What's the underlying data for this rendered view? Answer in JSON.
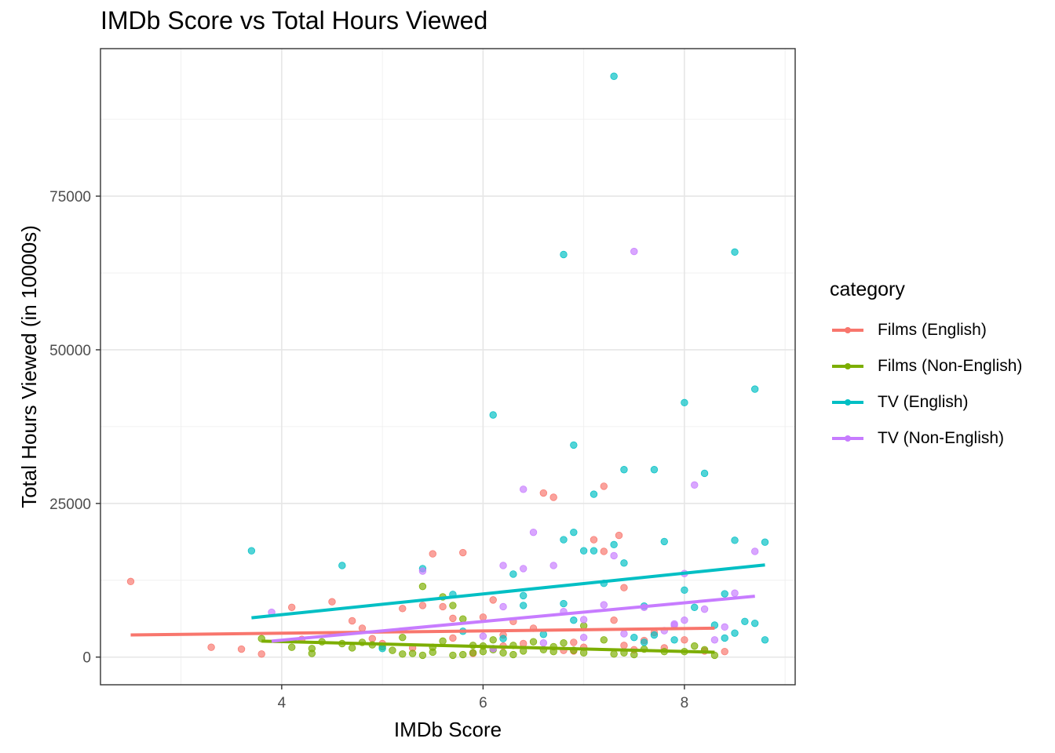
{
  "chart_data": {
    "type": "scatter",
    "title": "IMDb Score vs Total Hours Viewed",
    "xlabel": "IMDb Score",
    "ylabel": "Total Hours Viewed (in 10000s)",
    "xlim": [
      2.2,
      9.1
    ],
    "ylim": [
      -4500,
      99000
    ],
    "x_ticks": [
      4,
      6,
      8
    ],
    "x_tick_labels": [
      "4",
      "6",
      "8"
    ],
    "y_ticks": [
      0,
      25000,
      50000,
      75000
    ],
    "y_tick_labels": [
      "0",
      "25000",
      "50000",
      "75000"
    ],
    "x_minor": [
      3,
      5,
      7,
      9
    ],
    "y_minor": [
      12500,
      37500,
      62500,
      87500
    ],
    "grid": true,
    "legend": {
      "title": "category",
      "position": "right"
    },
    "series": [
      {
        "name": "Films (English)",
        "color": "#F8766D",
        "trend": [
          [
            2.5,
            3600
          ],
          [
            8.3,
            4700
          ]
        ],
        "points": [
          [
            2.5,
            12300
          ],
          [
            3.3,
            1600
          ],
          [
            3.6,
            1300
          ],
          [
            3.8,
            500
          ],
          [
            4.1,
            8100
          ],
          [
            4.5,
            9000
          ],
          [
            4.7,
            5900
          ],
          [
            4.8,
            4700
          ],
          [
            5.0,
            2200
          ],
          [
            5.2,
            7900
          ],
          [
            5.4,
            8400
          ],
          [
            5.5,
            16800
          ],
          [
            5.6,
            8200
          ],
          [
            5.7,
            3100
          ],
          [
            5.8,
            17000
          ],
          [
            5.9,
            600
          ],
          [
            6.0,
            6500
          ],
          [
            6.1,
            9300
          ],
          [
            6.2,
            3600
          ],
          [
            6.3,
            5800
          ],
          [
            6.4,
            2200
          ],
          [
            6.5,
            4700
          ],
          [
            6.6,
            26700
          ],
          [
            6.7,
            26000
          ],
          [
            6.8,
            1100
          ],
          [
            6.9,
            2400
          ],
          [
            7.0,
            1600
          ],
          [
            7.1,
            19100
          ],
          [
            7.2,
            27800
          ],
          [
            7.2,
            17200
          ],
          [
            7.3,
            6000
          ],
          [
            7.35,
            19800
          ],
          [
            7.4,
            11300
          ],
          [
            7.5,
            1200
          ],
          [
            7.6,
            2700
          ],
          [
            7.7,
            4000
          ],
          [
            7.8,
            1500
          ],
          [
            8.0,
            2800
          ],
          [
            8.2,
            1000
          ],
          [
            8.4,
            900
          ],
          [
            6.9,
            1000
          ],
          [
            6.2,
            1800
          ],
          [
            5.3,
            1500
          ],
          [
            4.2,
            2900
          ],
          [
            4.9,
            3000
          ],
          [
            5.7,
            6300
          ],
          [
            7.4,
            1900
          ]
        ]
      },
      {
        "name": "Films (Non-English)",
        "color": "#7CAE00",
        "trend": [
          [
            3.8,
            2600
          ],
          [
            8.3,
            800
          ]
        ],
        "points": [
          [
            3.8,
            3000
          ],
          [
            4.1,
            1600
          ],
          [
            4.3,
            600
          ],
          [
            4.3,
            1400
          ],
          [
            4.4,
            2500
          ],
          [
            4.6,
            2200
          ],
          [
            4.7,
            1500
          ],
          [
            4.8,
            2400
          ],
          [
            4.9,
            2000
          ],
          [
            5.0,
            1700
          ],
          [
            5.1,
            1100
          ],
          [
            5.2,
            500
          ],
          [
            5.3,
            600
          ],
          [
            5.4,
            11500
          ],
          [
            5.4,
            300
          ],
          [
            5.5,
            800
          ],
          [
            5.5,
            1600
          ],
          [
            5.6,
            9800
          ],
          [
            5.6,
            2600
          ],
          [
            5.7,
            8400
          ],
          [
            5.7,
            300
          ],
          [
            5.8,
            400
          ],
          [
            5.8,
            6200
          ],
          [
            5.9,
            1900
          ],
          [
            6.0,
            900
          ],
          [
            6.1,
            2800
          ],
          [
            6.1,
            1200
          ],
          [
            6.2,
            700
          ],
          [
            6.3,
            1900
          ],
          [
            6.3,
            400
          ],
          [
            6.4,
            1000
          ],
          [
            6.5,
            2500
          ],
          [
            6.6,
            1200
          ],
          [
            6.7,
            900
          ],
          [
            6.7,
            1700
          ],
          [
            6.8,
            2300
          ],
          [
            6.9,
            1100
          ],
          [
            7.0,
            5100
          ],
          [
            7.0,
            700
          ],
          [
            7.2,
            2800
          ],
          [
            7.3,
            500
          ],
          [
            7.4,
            700
          ],
          [
            7.5,
            400
          ],
          [
            7.6,
            1300
          ],
          [
            7.8,
            900
          ],
          [
            8.0,
            900
          ],
          [
            8.1,
            1800
          ],
          [
            8.2,
            1200
          ],
          [
            8.3,
            300
          ],
          [
            5.2,
            3200
          ],
          [
            6.0,
            1800
          ],
          [
            5.9,
            700
          ]
        ]
      },
      {
        "name": "TV (English)",
        "color": "#00BFC4",
        "trend": [
          [
            3.7,
            6400
          ],
          [
            8.8,
            15000
          ]
        ],
        "points": [
          [
            3.7,
            17300
          ],
          [
            4.6,
            14900
          ],
          [
            5.0,
            1400
          ],
          [
            5.4,
            14400
          ],
          [
            5.7,
            10200
          ],
          [
            5.8,
            4200
          ],
          [
            6.1,
            39400
          ],
          [
            6.2,
            3000
          ],
          [
            6.3,
            13500
          ],
          [
            6.4,
            10000
          ],
          [
            6.4,
            8400
          ],
          [
            6.6,
            3700
          ],
          [
            6.8,
            65500
          ],
          [
            6.8,
            19100
          ],
          [
            6.8,
            8700
          ],
          [
            6.9,
            34500
          ],
          [
            6.9,
            20300
          ],
          [
            7.0,
            17300
          ],
          [
            7.1,
            17300
          ],
          [
            7.1,
            26500
          ],
          [
            7.2,
            12000
          ],
          [
            7.3,
            18300
          ],
          [
            7.3,
            94500
          ],
          [
            7.4,
            30500
          ],
          [
            7.4,
            15300
          ],
          [
            7.5,
            3200
          ],
          [
            7.6,
            2400
          ],
          [
            7.7,
            30500
          ],
          [
            7.7,
            3600
          ],
          [
            7.8,
            18800
          ],
          [
            7.9,
            2800
          ],
          [
            8.0,
            41400
          ],
          [
            8.0,
            10900
          ],
          [
            8.1,
            8100
          ],
          [
            8.2,
            29900
          ],
          [
            8.3,
            5200
          ],
          [
            8.4,
            10300
          ],
          [
            8.4,
            3100
          ],
          [
            8.5,
            65900
          ],
          [
            8.5,
            19000
          ],
          [
            8.5,
            3900
          ],
          [
            8.6,
            5800
          ],
          [
            8.7,
            43600
          ],
          [
            8.7,
            5500
          ],
          [
            8.8,
            18700
          ],
          [
            8.8,
            2800
          ],
          [
            7.6,
            8300
          ],
          [
            6.9,
            6000
          ]
        ]
      },
      {
        "name": "TV (Non-English)",
        "color": "#C77CFF",
        "trend": [
          [
            3.9,
            2600
          ],
          [
            8.7,
            9900
          ]
        ],
        "points": [
          [
            3.9,
            7300
          ],
          [
            5.4,
            14000
          ],
          [
            6.0,
            3400
          ],
          [
            6.2,
            14900
          ],
          [
            6.2,
            8200
          ],
          [
            6.4,
            27300
          ],
          [
            6.4,
            14400
          ],
          [
            6.5,
            20300
          ],
          [
            6.7,
            14900
          ],
          [
            6.8,
            7400
          ],
          [
            7.0,
            6100
          ],
          [
            7.2,
            8500
          ],
          [
            7.3,
            16500
          ],
          [
            7.5,
            66000
          ],
          [
            7.6,
            8100
          ],
          [
            7.8,
            4300
          ],
          [
            7.9,
            5200
          ],
          [
            8.0,
            6000
          ],
          [
            8.0,
            13600
          ],
          [
            8.1,
            28000
          ],
          [
            8.2,
            7800
          ],
          [
            8.3,
            2800
          ],
          [
            8.4,
            4900
          ],
          [
            8.5,
            10400
          ],
          [
            8.7,
            17200
          ],
          [
            7.0,
            3200
          ],
          [
            6.6,
            2300
          ],
          [
            6.1,
            1400
          ],
          [
            7.4,
            3800
          ],
          [
            7.9,
            5400
          ]
        ]
      }
    ]
  }
}
